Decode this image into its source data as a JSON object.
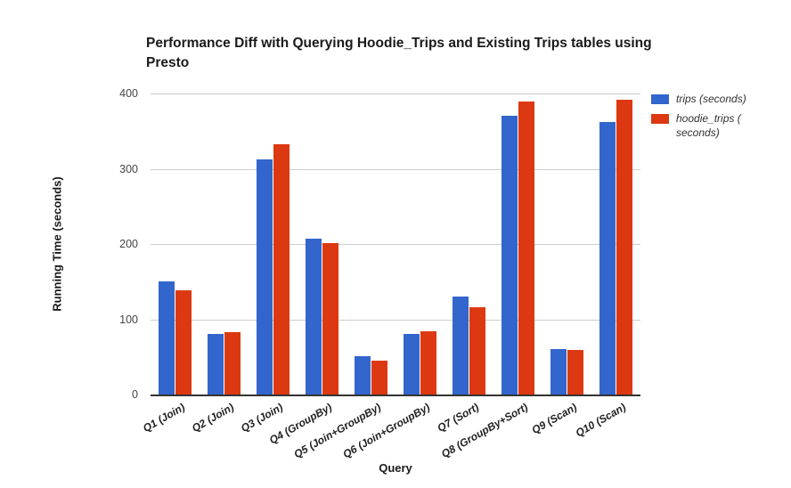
{
  "chart_data": {
    "type": "bar",
    "title": "Performance Diff with Querying Hoodie_Trips and Existing Trips tables using Presto",
    "xlabel": "Query",
    "ylabel": "Running Time (seconds)",
    "ylim": [
      0,
      400
    ],
    "yticks": [
      0,
      100,
      200,
      300,
      400
    ],
    "grid": true,
    "legend_position": "right",
    "categories": [
      "Q1 (Join)",
      "Q2 (Join)",
      "Q3 (Join)",
      "Q4 (GroupBy)",
      "Q5 (Join+GroupBy)",
      "Q6 (Join+GroupBy)",
      "Q7 (Sort)",
      "Q8 (GroupBy+Sort)",
      "Q9 (Scan)",
      "Q10 (Scan)"
    ],
    "series": [
      {
        "name": "trips (seconds)",
        "color": "#3366CC",
        "values": [
          150,
          80,
          312,
          207,
          51,
          80,
          130,
          371,
          60,
          362
        ]
      },
      {
        "name": "hoodie_trips ( seconds)",
        "color": "#DC3912",
        "values": [
          138,
          83,
          332,
          201,
          45,
          84,
          116,
          389,
          59,
          392
        ]
      }
    ],
    "colors": {
      "grid": "#cccccc",
      "axis": "#333333",
      "tick_text": "#444444"
    }
  }
}
